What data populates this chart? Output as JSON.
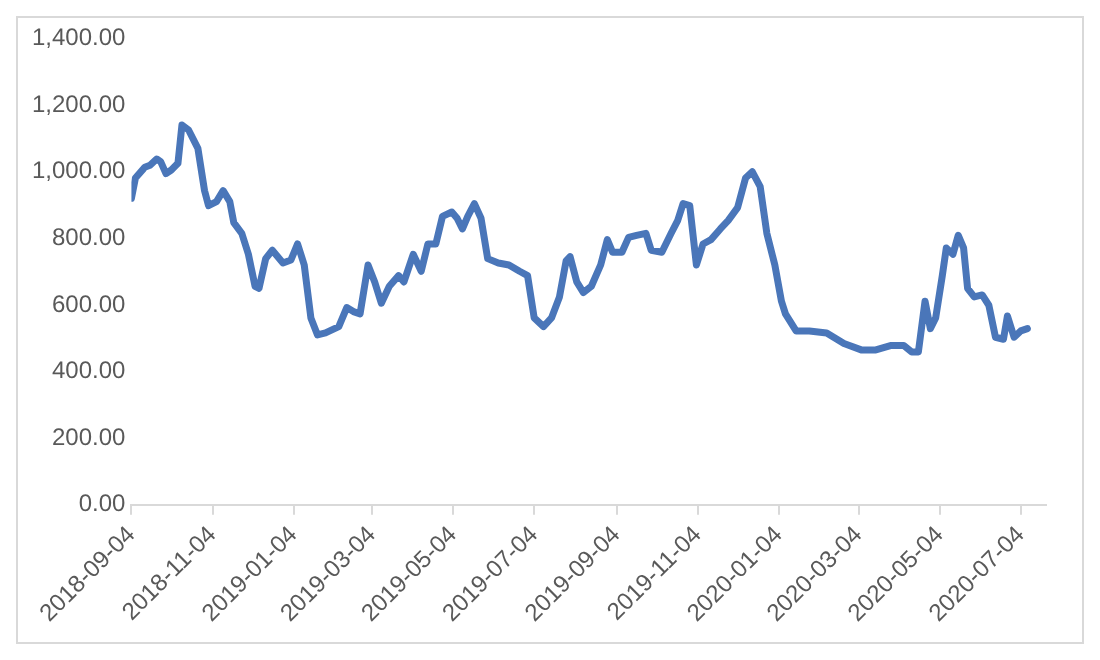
{
  "chart_data": {
    "type": "line",
    "color": "#4a76b9",
    "line_style": "solid",
    "marker": "none",
    "grid": false,
    "legend": false,
    "x": [
      "2018-09-04",
      "2018-09-07",
      "2018-09-14",
      "2018-09-18",
      "2018-09-23",
      "2018-09-26",
      "2018-09-30",
      "2018-10-04",
      "2018-10-09",
      "2018-10-12",
      "2018-10-17",
      "2018-10-24",
      "2018-10-29",
      "2018-11-01",
      "2018-11-07",
      "2018-11-12",
      "2018-11-17",
      "2018-11-20",
      "2018-11-26",
      "2018-12-01",
      "2018-12-06",
      "2018-12-09",
      "2018-12-14",
      "2018-12-19",
      "2018-12-27",
      "2019-01-02",
      "2019-01-07",
      "2019-01-12",
      "2019-01-17",
      "2019-01-22",
      "2019-01-28",
      "2019-02-07",
      "2019-02-13",
      "2019-02-18",
      "2019-02-23",
      "2019-03-01",
      "2019-03-06",
      "2019-03-11",
      "2019-03-17",
      "2019-03-24",
      "2019-03-28",
      "2019-04-04",
      "2019-04-10",
      "2019-04-15",
      "2019-04-21",
      "2019-04-26",
      "2019-05-03",
      "2019-05-07",
      "2019-05-11",
      "2019-05-15",
      "2019-05-20",
      "2019-05-25",
      "2019-05-30",
      "2019-06-07",
      "2019-06-15",
      "2019-06-23",
      "2019-06-29",
      "2019-07-04",
      "2019-07-11",
      "2019-07-17",
      "2019-07-23",
      "2019-07-28",
      "2019-07-31",
      "2019-08-05",
      "2019-08-10",
      "2019-08-16",
      "2019-08-23",
      "2019-08-28",
      "2019-09-01",
      "2019-09-08",
      "2019-09-13",
      "2019-09-19",
      "2019-09-26",
      "2019-09-30",
      "2019-10-08",
      "2019-10-15",
      "2019-10-20",
      "2019-10-24",
      "2019-10-29",
      "2019-11-03",
      "2019-11-08",
      "2019-11-14",
      "2019-11-21",
      "2019-11-27",
      "2019-12-04",
      "2019-12-10",
      "2019-12-15",
      "2019-12-21",
      "2019-12-26",
      "2020-01-01",
      "2020-01-06",
      "2020-01-09",
      "2020-01-17",
      "2020-01-27",
      "2020-02-09",
      "2020-02-22",
      "2020-03-06",
      "2020-03-17",
      "2020-03-28",
      "2020-04-07",
      "2020-04-13",
      "2020-04-18",
      "2020-04-23",
      "2020-04-27",
      "2020-05-01",
      "2020-05-06",
      "2020-05-09",
      "2020-05-14",
      "2020-05-18",
      "2020-05-22",
      "2020-05-25",
      "2020-05-30",
      "2020-06-05",
      "2020-06-10",
      "2020-06-15",
      "2020-06-21",
      "2020-06-24",
      "2020-06-29",
      "2020-07-04",
      "2020-07-09"
    ],
    "values": [
      920,
      981,
      1013,
      1019,
      1038,
      1030,
      994,
      1005,
      1025,
      1140,
      1125,
      1070,
      943,
      898,
      910,
      943,
      910,
      847,
      815,
      752,
      656,
      650,
      739,
      764,
      726,
      735,
      783,
      720,
      561,
      510,
      516,
      535,
      592,
      580,
      573,
      720,
      669,
      605,
      656,
      688,
      669,
      752,
      701,
      783,
      783,
      866,
      879,
      860,
      828,
      866,
      904,
      860,
      739,
      726,
      720,
      701,
      688,
      561,
      535,
      561,
      624,
      732,
      745,
      669,
      637,
      656,
      720,
      796,
      758,
      758,
      803,
      809,
      815,
      764,
      758,
      815,
      854,
      904,
      898,
      720,
      783,
      796,
      828,
      854,
      892,
      981,
      1000,
      955,
      815,
      720,
      611,
      573,
      522,
      522,
      516,
      484,
      465,
      465,
      478,
      478,
      459,
      459,
      611,
      529,
      561,
      688,
      771,
      752,
      809,
      771,
      650,
      624,
      630,
      599,
      503,
      497,
      567,
      503,
      522,
      529
    ],
    "xlim": [
      "2018-09-04",
      "2020-07-23"
    ],
    "xticks": [
      "2018-09-04",
      "2018-11-04",
      "2019-01-04",
      "2019-03-04",
      "2019-05-04",
      "2019-07-04",
      "2019-09-04",
      "2019-11-04",
      "2020-01-04",
      "2020-03-04",
      "2020-05-04",
      "2020-07-04"
    ],
    "ylim": [
      0,
      1400
    ],
    "yticks": [
      {
        "value": 0,
        "label": "0.00"
      },
      {
        "value": 200,
        "label": "200.00"
      },
      {
        "value": 400,
        "label": "400.00"
      },
      {
        "value": 600,
        "label": "600.00"
      },
      {
        "value": 800,
        "label": "800.00"
      },
      {
        "value": 1000,
        "label": "1,000.00"
      },
      {
        "value": 1200,
        "label": "1,200.00"
      },
      {
        "value": 1400,
        "label": "1,400.00"
      }
    ]
  }
}
